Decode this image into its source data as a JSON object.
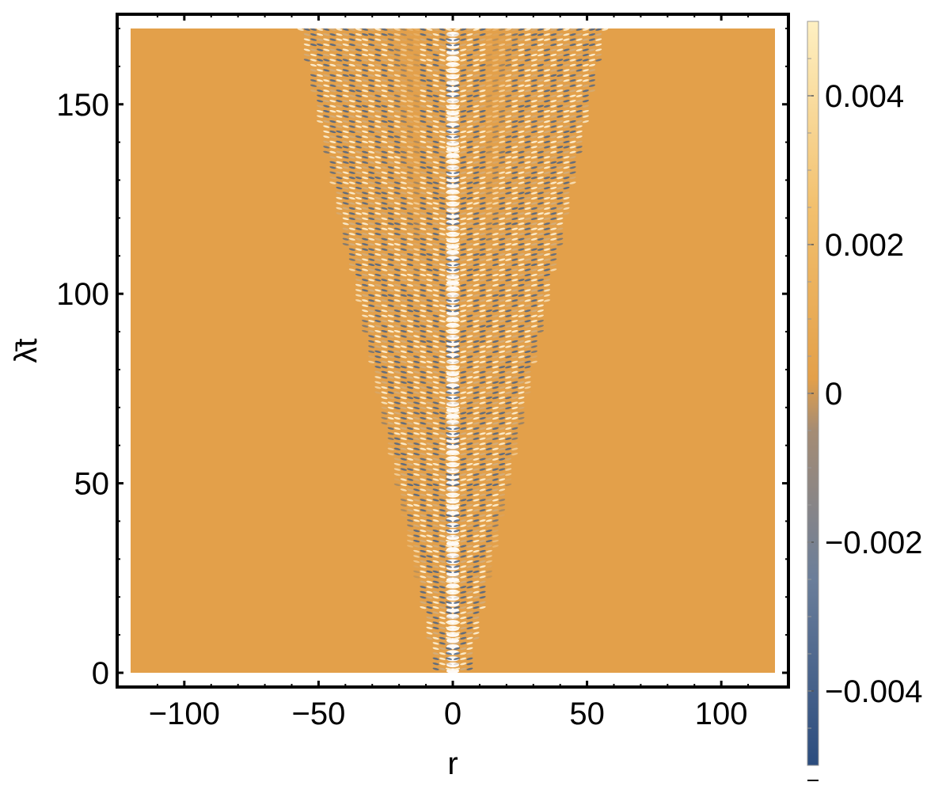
{
  "chart_data": {
    "type": "heatmap",
    "title": "",
    "xlabel": "r",
    "ylabel": "λ̄t",
    "xlim": [
      -120,
      120
    ],
    "ylim": [
      0,
      170
    ],
    "x_ticks": [
      {
        "value": -100,
        "label": "−100"
      },
      {
        "value": -50,
        "label": "−50"
      },
      {
        "value": 0,
        "label": "0"
      },
      {
        "value": 50,
        "label": "50"
      },
      {
        "value": 100,
        "label": "100"
      }
    ],
    "y_ticks": [
      {
        "value": 0,
        "label": "0"
      },
      {
        "value": 50,
        "label": "50"
      },
      {
        "value": 100,
        "label": "100"
      },
      {
        "value": 150,
        "label": "150"
      }
    ],
    "colorbar": {
      "range": [
        -0.005,
        0.005
      ],
      "ticks": [
        {
          "value": 0.004,
          "label": "0.004"
        },
        {
          "value": 0.002,
          "label": "0.002"
        },
        {
          "value": 0,
          "label": "0"
        },
        {
          "value": -0.002,
          "label": "−0.002"
        },
        {
          "value": -0.004,
          "label": "−0.004"
        }
      ],
      "colors": [
        "#2b4c7e",
        "#6b7e9a",
        "#a58c74",
        "#e3a04a",
        "#f2c06e",
        "#fef0c2"
      ]
    },
    "background_value": 0,
    "field_description": "oscillating pattern confined to a cone |r| <= ~0.3*t, saturated near r=0",
    "cone": {
      "inner_edge_slope": 0.18,
      "outer_edge_slope": 0.3
    },
    "grid": false,
    "legend": "none"
  },
  "colors": {
    "background_field": "#e3a04a",
    "frame": "#000000"
  }
}
